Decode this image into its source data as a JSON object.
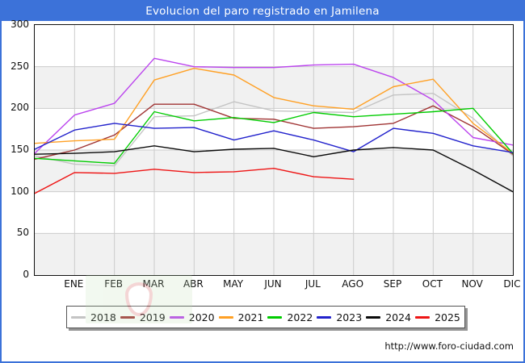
{
  "window": {
    "title": "Evolucion del paro registrado en Jamilena",
    "footer_url": "http://www.foro-ciudad.com",
    "title_bar_color": "#3c72d9"
  },
  "chart_data": {
    "type": "line",
    "title": "Evolucion del paro registrado en Jamilena",
    "xlabel": "",
    "ylabel": "",
    "ylim": [
      0,
      300
    ],
    "yticks": [
      0,
      50,
      100,
      150,
      200,
      250,
      300
    ],
    "grid": true,
    "band_fill_color": "#f1f1f1",
    "gridline_color": "#cccccc",
    "legend_position": "bottom",
    "categories": [
      "",
      "ENE",
      "FEB",
      "MAR",
      "ABR",
      "MAY",
      "JUN",
      "JUL",
      "AGO",
      "SEP",
      "OCT",
      "NOV",
      "DIC"
    ],
    "series": [
      {
        "name": "2018",
        "color": "#c4c4c4",
        "values": [
          143,
          133,
          131,
          190,
          191,
          208,
          197,
          196,
          195,
          216,
          218,
          188,
          143
        ]
      },
      {
        "name": "2019",
        "color": "#a03434",
        "values": [
          139,
          150,
          168,
          205,
          205,
          188,
          187,
          176,
          178,
          182,
          203,
          178,
          145
        ]
      },
      {
        "name": "2020",
        "color": "#bb44ee",
        "values": [
          146,
          192,
          206,
          260,
          250,
          249,
          249,
          252,
          253,
          237,
          210,
          165,
          156
        ]
      },
      {
        "name": "2021",
        "color": "#ffa024",
        "values": [
          158,
          161,
          163,
          234,
          248,
          240,
          213,
          203,
          199,
          226,
          235,
          182,
          146
        ]
      },
      {
        "name": "2022",
        "color": "#00cc00",
        "values": [
          140,
          137,
          134,
          196,
          185,
          189,
          183,
          195,
          190,
          193,
          196,
          200,
          146
        ]
      },
      {
        "name": "2023",
        "color": "#2222cc",
        "values": [
          151,
          174,
          182,
          176,
          177,
          162,
          173,
          162,
          148,
          176,
          170,
          155,
          147
        ]
      },
      {
        "name": "2024",
        "color": "#0a0a0a",
        "values": [
          145,
          146,
          148,
          155,
          148,
          151,
          152,
          142,
          150,
          153,
          150,
          126,
          100
        ]
      },
      {
        "name": "2025",
        "color": "#ee1515",
        "values": [
          98,
          123,
          122,
          127,
          123,
          124,
          128,
          118,
          115,
          null,
          null,
          null,
          null
        ]
      }
    ]
  }
}
